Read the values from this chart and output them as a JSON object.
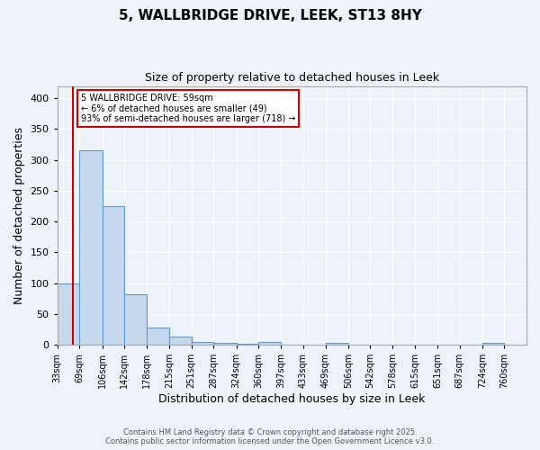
{
  "title_line1": "5, WALLBRIDGE DRIVE, LEEK, ST13 8HY",
  "title_line2": "Size of property relative to detached houses in Leek",
  "xlabel": "Distribution of detached houses by size in Leek",
  "ylabel": "Number of detached properties",
  "bar_labels": [
    "33sqm",
    "69sqm",
    "106sqm",
    "142sqm",
    "178sqm",
    "215sqm",
    "251sqm",
    "287sqm",
    "324sqm",
    "360sqm",
    "397sqm",
    "433sqm",
    "469sqm",
    "506sqm",
    "542sqm",
    "578sqm",
    "615sqm",
    "651sqm",
    "687sqm",
    "724sqm",
    "760sqm"
  ],
  "bar_values": [
    100,
    315,
    225,
    82,
    28,
    13,
    5,
    3,
    1,
    5,
    0,
    0,
    3,
    0,
    0,
    0,
    0,
    0,
    0,
    3,
    0
  ],
  "bar_color": "#c5d8ed",
  "bar_edge_color": "#5b9bd5",
  "annotation_line1": "5 WALLBRIDGE DRIVE: 59sqm",
  "annotation_line2": "← 6% of detached houses are smaller (49)",
  "annotation_line3": "93% of semi-detached houses are larger (718) →",
  "annotation_box_color": "#ffffff",
  "annotation_box_edge": "#cc0000",
  "red_line_x": 59,
  "ylim": [
    0,
    420
  ],
  "yticks": [
    0,
    50,
    100,
    150,
    200,
    250,
    300,
    350,
    400
  ],
  "background_color": "#eef2f9",
  "grid_color": "#ffffff",
  "footer1": "Contains HM Land Registry data © Crown copyright and database right 2025.",
  "footer2": "Contains public sector information licensed under the Open Government Licence v3.0."
}
